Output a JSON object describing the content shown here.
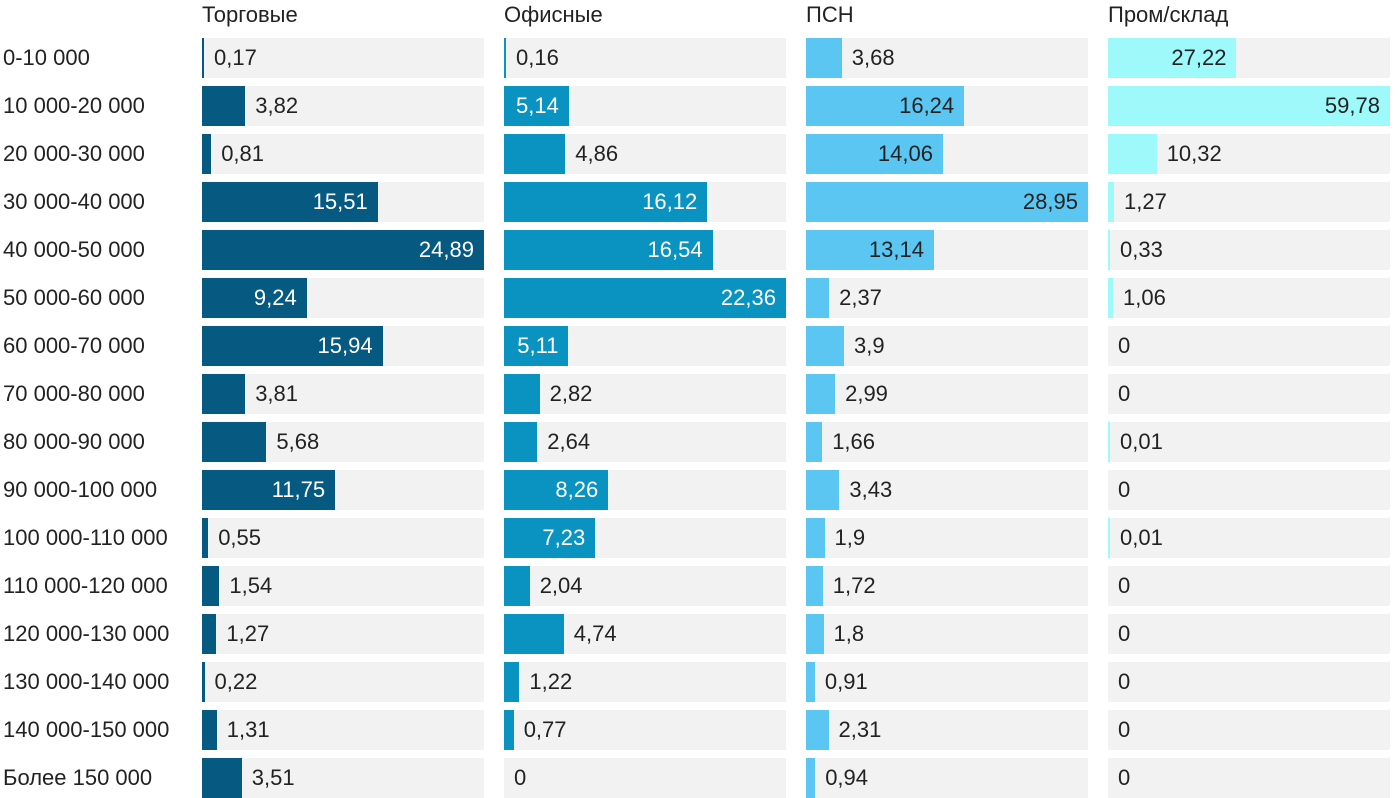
{
  "chart_data": {
    "type": "bar",
    "categories": [
      "0-10 000",
      "10 000-20 000",
      "20 000-30 000",
      "30 000-40 000",
      "40 000-50 000",
      "50 000-60 000",
      "60 000-70 000",
      "70 000-80 000",
      "80 000-90 000",
      "90 000-100 000",
      "100 000-110 000",
      "110 000-120 000",
      "120 000-130 000",
      "130 000-140 000",
      "140 000-150 000",
      "Более 150 000"
    ],
    "series": [
      {
        "name": "Торговые",
        "color": "#065a82",
        "values": [
          0.17,
          3.82,
          0.81,
          15.51,
          24.89,
          9.24,
          15.94,
          3.81,
          5.68,
          11.75,
          0.55,
          1.54,
          1.27,
          0.22,
          1.31,
          3.51
        ],
        "labels": [
          "0,17",
          "3,82",
          "0,81",
          "15,51",
          "24,89",
          "9,24",
          "15,94",
          "3,81",
          "5,68",
          "11,75",
          "0,55",
          "1,54",
          "1,27",
          "0,22",
          "1,31",
          "3,51"
        ]
      },
      {
        "name": "Офисные",
        "color": "#0a93c0",
        "values": [
          0.16,
          5.14,
          4.86,
          16.12,
          16.54,
          22.36,
          5.11,
          2.82,
          2.64,
          8.26,
          7.23,
          2.04,
          4.74,
          1.22,
          0.77,
          0
        ],
        "labels": [
          "0,16",
          "5,14",
          "4,86",
          "16,12",
          "16,54",
          "22,36",
          "5,11",
          "2,82",
          "2,64",
          "8,26",
          "7,23",
          "2,04",
          "4,74",
          "1,22",
          "0,77",
          "0"
        ]
      },
      {
        "name": "ПСН",
        "color": "#5cc6f2",
        "values": [
          3.68,
          16.24,
          14.06,
          28.95,
          13.14,
          2.37,
          3.9,
          2.99,
          1.66,
          3.43,
          1.9,
          1.72,
          1.8,
          0.91,
          2.31,
          0.94
        ],
        "labels": [
          "3,68",
          "16,24",
          "14,06",
          "28,95",
          "13,14",
          "2,37",
          "3,9",
          "2,99",
          "1,66",
          "3,43",
          "1,9",
          "1,72",
          "1,8",
          "0,91",
          "2,31",
          "0,94"
        ]
      },
      {
        "name": "Пром/склад",
        "color": "#9ef9fb",
        "values": [
          27.22,
          59.78,
          10.32,
          1.27,
          0.33,
          1.06,
          0,
          0,
          0.01,
          0,
          0.01,
          0,
          0,
          0,
          0,
          0
        ],
        "labels": [
          "27,22",
          "59,78",
          "10,32",
          "1,27",
          "0,33",
          "1,06",
          "0",
          "0",
          "0,01",
          "0",
          "0,01",
          "0",
          "0",
          "0",
          "0",
          "0"
        ]
      }
    ],
    "label_color_on_dark": "#ffffff",
    "label_color_on_light": "#222222",
    "track_color": "#f2f2f2"
  }
}
